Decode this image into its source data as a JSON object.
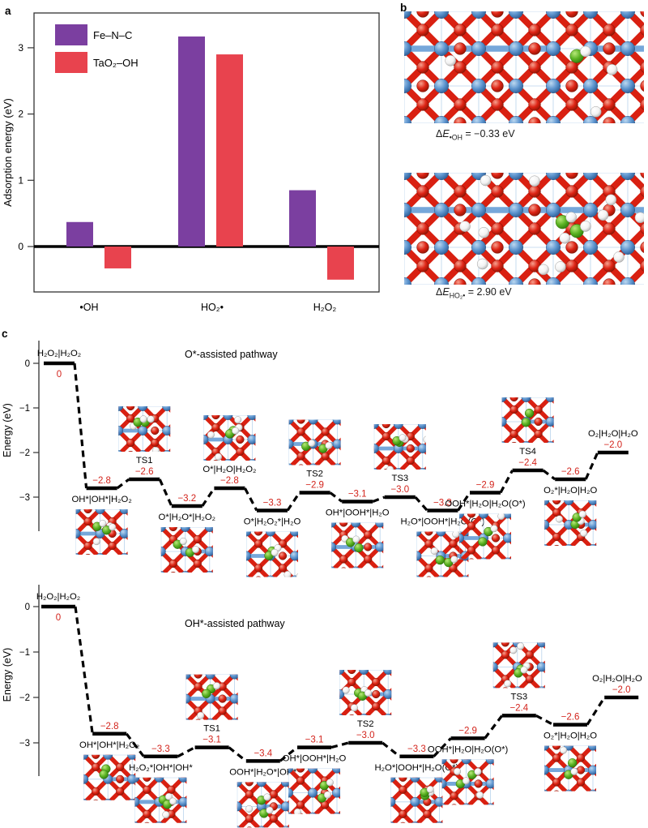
{
  "panels": {
    "a": "a",
    "b": "b",
    "c": "c"
  },
  "colors": {
    "fe_n_c": "#7b3fa0",
    "tao2_oh": "#e8434e",
    "energy_value": "#d3241c",
    "axis": "#333333",
    "level": "#000000",
    "atom_blue": "#5e95cf",
    "atom_red": "#dd2314",
    "atom_white": "#f2f2f2",
    "atom_green": "#5cb324",
    "bond_red": "#d92011",
    "bond_blue": "#76a7da",
    "guide_blue": "#9cc0e4",
    "guide_red": "#e9a0a0"
  },
  "panel_b": {
    "structures": [
      {
        "caption_delta": "Δ",
        "caption_E": "E",
        "caption_sub": "•OH",
        "caption_rest": " = −0.33 eV"
      },
      {
        "caption_delta": "Δ",
        "caption_E": "E",
        "caption_sub": "HO₂•",
        "caption_rest": " = 2.90 eV"
      }
    ]
  },
  "chart_data": [
    {
      "type": "bar",
      "title": "",
      "xlabel": "",
      "ylabel": "Adsorption energy (eV)",
      "categories": [
        "•OH",
        "HO₂•",
        "H₂O₂"
      ],
      "series": [
        {
          "name": "Fe–N–C",
          "color": "#7b3fa0",
          "values": [
            0.37,
            3.17,
            0.85
          ]
        },
        {
          "name": "TaO₂–OH",
          "color": "#e8434e",
          "values": [
            -0.33,
            2.9,
            -0.5
          ]
        }
      ],
      "yticks": [
        0,
        1,
        2,
        3
      ],
      "ylim": [
        -0.69,
        3.49
      ],
      "legend_position": "top-left",
      "zero_line": true
    },
    {
      "type": "energy-pathway",
      "title": "O*-assisted pathway",
      "ylabel": "Energy (eV)",
      "yticks": [
        0,
        -1,
        -2,
        -3
      ],
      "ylim": [
        -3.6,
        0.4
      ],
      "states": [
        {
          "label": "H₂O₂|H₂O₂",
          "energy": 0,
          "value": "0",
          "label_side": "above",
          "value_side": "below",
          "thumb": "none"
        },
        {
          "label": "OH*|OH*|H₂O₂",
          "energy": -2.8,
          "value": "−2.8",
          "label_side": "below",
          "thumb": "below"
        },
        {
          "label": "TS1",
          "energy": -2.6,
          "value": "−2.6",
          "label_side": "above",
          "thumb": "above"
        },
        {
          "label": "O*|H₂O*|H₂O₂",
          "energy": -3.2,
          "value": "−3.2",
          "label_side": "below",
          "thumb": "below"
        },
        {
          "label": "O*|H₂O|H₂O₂",
          "energy": -2.8,
          "value": "−2.8",
          "label_side": "above",
          "thumb": "above"
        },
        {
          "label": "O*|H₂O₂*|H₂O",
          "energy": -3.3,
          "value": "−3.3",
          "label_side": "below",
          "thumb": "below"
        },
        {
          "label": "TS2",
          "energy": -2.9,
          "value": "−2.9",
          "label_side": "above",
          "thumb": "above"
        },
        {
          "label": "OH*|OOH*|H₂O",
          "energy": -3.1,
          "value": "−3.1",
          "label_side": "below",
          "thumb": "below"
        },
        {
          "label": "TS3",
          "energy": -3.0,
          "value": "−3.0",
          "label_side": "above",
          "thumb": "above"
        },
        {
          "label": "H₂O*|OOH*|H₂O(O*)",
          "energy": -3.3,
          "value": "−3.3",
          "label_side": "below",
          "thumb": "below"
        },
        {
          "label": "OOH*|H₂O|H₂O(O*)",
          "energy": -2.9,
          "value": "−2.9",
          "label_side": "below",
          "thumb": "below"
        },
        {
          "label": "TS4",
          "energy": -2.4,
          "value": "−2.4",
          "label_side": "above",
          "thumb": "above"
        },
        {
          "label": "O₂*|H₂O|H₂O",
          "energy": -2.6,
          "value": "−2.6",
          "label_side": "below",
          "thumb": "below"
        },
        {
          "label": "O₂|H₂O|H₂O",
          "energy": -2.0,
          "value": "−2.0",
          "label_side": "above",
          "thumb": "none"
        }
      ]
    },
    {
      "type": "energy-pathway",
      "title": "OH*-assisted pathway",
      "ylabel": "Energy (eV)",
      "yticks": [
        0,
        -1,
        -2,
        -3
      ],
      "ylim": [
        -3.7,
        0.4
      ],
      "states": [
        {
          "label": "H₂O₂|H₂O₂",
          "energy": 0,
          "value": "0",
          "label_side": "above",
          "value_side": "below",
          "thumb": "none"
        },
        {
          "label": "OH*|OH*|H₂O₂",
          "energy": -2.8,
          "value": "−2.8",
          "label_side": "below",
          "thumb": "below"
        },
        {
          "label": "H₂O₂*|OH*|OH*",
          "energy": -3.3,
          "value": "−3.3",
          "label_side": "below",
          "thumb": "below"
        },
        {
          "label": "TS1",
          "energy": -3.1,
          "value": "−3.1",
          "label_side": "above",
          "thumb": "above"
        },
        {
          "label": "OOH*|H₂O*|OH*",
          "energy": -3.4,
          "value": "−3.4",
          "label_side": "below",
          "thumb": "below"
        },
        {
          "label": "OH*|OOH*|H₂O",
          "energy": -3.1,
          "value": "−3.1",
          "label_side": "below",
          "thumb": "below"
        },
        {
          "label": "TS2",
          "energy": -3.0,
          "value": "−3.0",
          "label_side": "above",
          "thumb": "above"
        },
        {
          "label": "H₂O*|OOH*|H₂O(O*)",
          "energy": -3.3,
          "value": "−3.3",
          "label_side": "below",
          "thumb": "below"
        },
        {
          "label": "OOH*|H₂O|H₂O(O*)",
          "energy": -2.9,
          "value": "−2.9",
          "label_side": "below",
          "thumb": "below"
        },
        {
          "label": "TS3",
          "energy": -2.4,
          "value": "−2.4",
          "label_side": "above",
          "thumb": "above"
        },
        {
          "label": "O₂*|H₂O|H₂O",
          "energy": -2.6,
          "value": "−2.6",
          "label_side": "below",
          "thumb": "below"
        },
        {
          "label": "O₂|H₂O|H₂O",
          "energy": -2.0,
          "value": "−2.0",
          "label_side": "above",
          "thumb": "none"
        }
      ]
    }
  ]
}
